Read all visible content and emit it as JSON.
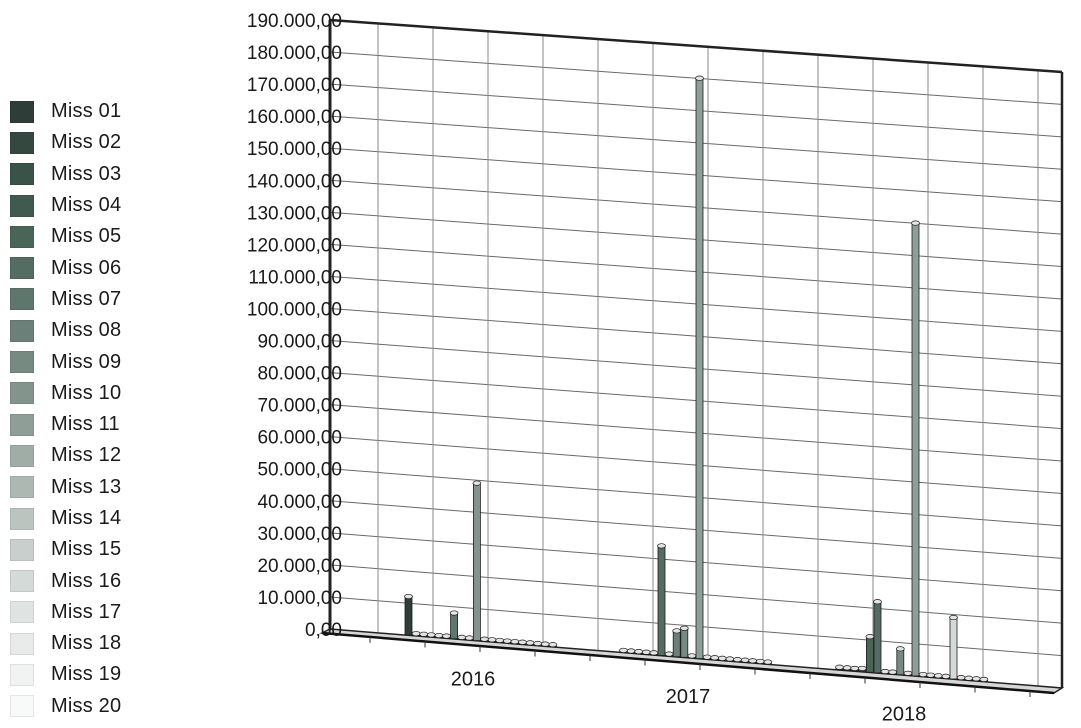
{
  "chart_data": {
    "type": "bar",
    "title": "",
    "xlabel": "",
    "ylabel": "",
    "categories": [
      "2016",
      "2017",
      "2018"
    ],
    "ylim": [
      0,
      190000
    ],
    "y_ticks": [
      "0,00",
      "10.000,00",
      "20.000,00",
      "30.000,00",
      "40.000,00",
      "50.000,00",
      "60.000,00",
      "70.000,00",
      "80.000,00",
      "90.000,00",
      "100.000,00",
      "110.000,00",
      "120.000,00",
      "130.000,00",
      "140.000,00",
      "150.000,00",
      "160.000,00",
      "170.000,00",
      "180.000,00",
      "190.000,00"
    ],
    "grid": true,
    "legend_position": "left",
    "series": [
      {
        "name": "Miss 01",
        "color": "#2e3d38",
        "values": [
          12000,
          300,
          800
        ]
      },
      {
        "name": "Miss 02",
        "color": "#344840",
        "values": [
          500,
          200,
          800
        ]
      },
      {
        "name": "Miss 03",
        "color": "#3a5248",
        "values": [
          400,
          0,
          800
        ]
      },
      {
        "name": "Miss 04",
        "color": "#405a50",
        "values": [
          300,
          300,
          1000
        ]
      },
      {
        "name": "Miss 05",
        "color": "#4a6458",
        "values": [
          300,
          400,
          11000
        ]
      },
      {
        "name": "Miss 06",
        "color": "#546c62",
        "values": [
          300,
          34000,
          22000
        ]
      },
      {
        "name": "Miss 07",
        "color": "#5e766c",
        "values": [
          8000,
          100,
          300
        ]
      },
      {
        "name": "Miss 08",
        "color": "#6a8078",
        "values": [
          300,
          8000,
          200
        ]
      },
      {
        "name": "Miss 09",
        "color": "#768a82",
        "values": [
          300,
          9000,
          8000
        ]
      },
      {
        "name": "Miss 10",
        "color": "#82948c",
        "values": [
          49000,
          100,
          200
        ]
      },
      {
        "name": "Miss 11",
        "color": "#909e98",
        "values": [
          300,
          180000,
          140000
        ]
      },
      {
        "name": "Miss 12",
        "color": "#a0aca6",
        "values": [
          300,
          300,
          300
        ]
      },
      {
        "name": "Miss 13",
        "color": "#aeb8b3",
        "values": [
          300,
          300,
          300
        ]
      },
      {
        "name": "Miss 14",
        "color": "#bcc4c0",
        "values": [
          300,
          300,
          300
        ]
      },
      {
        "name": "Miss 15",
        "color": "#c8cfcc",
        "values": [
          300,
          300,
          300
        ]
      },
      {
        "name": "Miss 16",
        "color": "#d4dad7",
        "values": [
          300,
          300,
          19000
        ]
      },
      {
        "name": "Miss 17",
        "color": "#dfe3e1",
        "values": [
          300,
          300,
          300
        ]
      },
      {
        "name": "Miss 18",
        "color": "#e8ebea",
        "values": [
          300,
          300,
          300
        ]
      },
      {
        "name": "Miss 19",
        "color": "#f1f3f2",
        "values": [
          300,
          300,
          300
        ]
      },
      {
        "name": "Miss 20",
        "color": "#f8f9f9",
        "values": [
          300,
          300,
          300
        ]
      }
    ]
  }
}
